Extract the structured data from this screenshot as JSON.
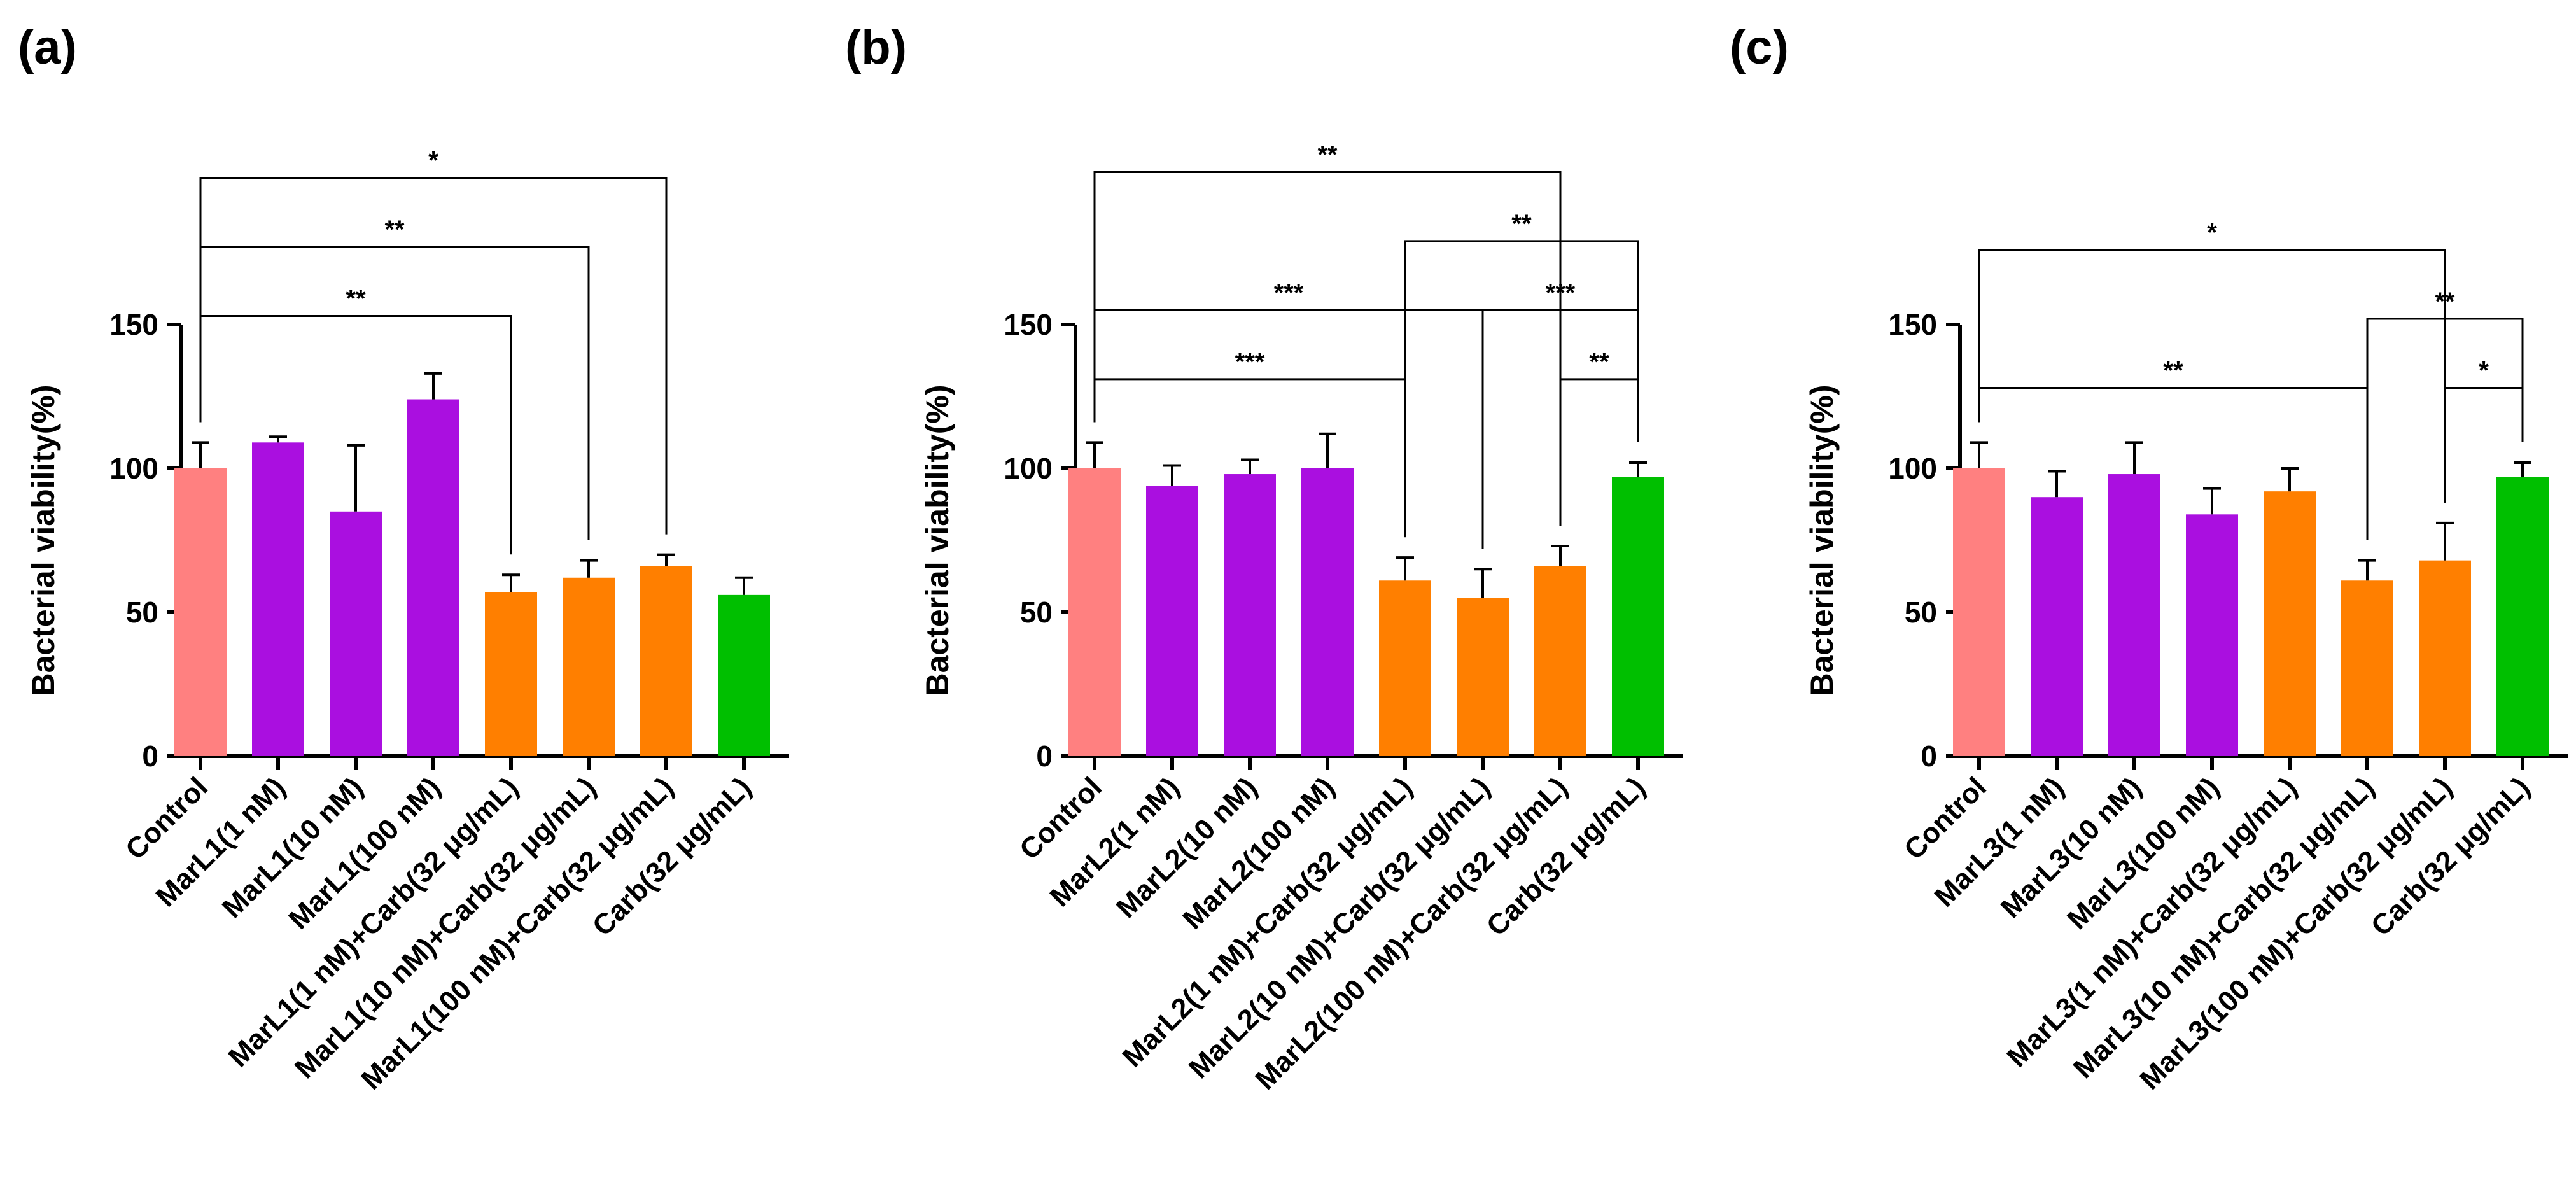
{
  "colors": {
    "control": "#FF8080",
    "marl": "#AA0FE0",
    "combo": "#FF7F00",
    "carb": "#00BF00",
    "axis": "#000000"
  },
  "chart_data": [
    {
      "type": "bar",
      "panel_label": "(a)",
      "ylabel": "Bacterial viability(%)",
      "ylim": [
        0,
        150
      ],
      "yticks": [
        0,
        50,
        100,
        150
      ],
      "grid": false,
      "categories": [
        "Control",
        "MarL1(1 nM)",
        "MarL1(10 nM)",
        "MarL1(100 nM)",
        "MarL1(1 nM)+Carb(32 μg/mL)",
        "MarL1(10 nM)+Carb(32 μg/mL)",
        "MarL1(100 nM)+Carb(32 μg/mL)",
        "Carb(32 μg/mL)"
      ],
      "values": [
        100,
        109,
        85,
        124,
        57,
        62,
        66,
        56
      ],
      "errors": [
        9,
        2,
        23,
        9,
        6,
        6,
        4,
        6
      ],
      "color_keys": [
        "control",
        "marl",
        "marl",
        "marl",
        "combo",
        "combo",
        "combo",
        "carb"
      ],
      "significance": [
        {
          "from": 0,
          "to": 4,
          "label": "**",
          "y": 153
        },
        {
          "from": 0,
          "to": 5,
          "label": "**",
          "y": 177
        },
        {
          "from": 0,
          "to": 6,
          "label": "*",
          "y": 201
        }
      ]
    },
    {
      "type": "bar",
      "panel_label": "(b)",
      "ylabel": "Bacterial viability(%)",
      "ylim": [
        0,
        150
      ],
      "yticks": [
        0,
        50,
        100,
        150
      ],
      "grid": false,
      "categories": [
        "Control",
        "MarL2(1 nM)",
        "MarL2(10 nM)",
        "MarL2(100 nM)",
        "MarL2(1 nM)+Carb(32 μg/mL)",
        "MarL2(10 nM)+Carb(32 μg/mL)",
        "MarL2(100 nM)+Carb(32 μg/mL)",
        "Carb(32 μg/mL)"
      ],
      "values": [
        100,
        94,
        98,
        100,
        61,
        55,
        66,
        97
      ],
      "errors": [
        9,
        7,
        5,
        12,
        8,
        10,
        7,
        5
      ],
      "color_keys": [
        "control",
        "marl",
        "marl",
        "marl",
        "combo",
        "combo",
        "combo",
        "carb"
      ],
      "significance": [
        {
          "from": 6,
          "to": 7,
          "label": "**",
          "y": 131
        },
        {
          "from": 0,
          "to": 4,
          "label": "***",
          "y": 131
        },
        {
          "from": 0,
          "to": 5,
          "label": "***",
          "y": 155
        },
        {
          "from": 5,
          "to": 7,
          "label": "***",
          "y": 155
        },
        {
          "from": 4,
          "to": 7,
          "label": "**",
          "y": 179
        },
        {
          "from": 0,
          "to": 6,
          "label": "**",
          "y": 203
        }
      ]
    },
    {
      "type": "bar",
      "panel_label": "(c)",
      "ylabel": "Bacterial viability(%)",
      "ylim": [
        0,
        150
      ],
      "yticks": [
        0,
        50,
        100,
        150
      ],
      "grid": false,
      "categories": [
        "Control",
        "MarL3(1 nM)",
        "MarL3(10 nM)",
        "MarL3(100 nM)",
        "MarL3(1 nM)+Carb(32 μg/mL)",
        "MarL3(10 nM)+Carb(32 μg/mL)",
        "MarL3(100 nM)+Carb(32 μg/mL)",
        "Carb(32 μg/mL)"
      ],
      "values": [
        100,
        90,
        98,
        84,
        92,
        61,
        68,
        97
      ],
      "errors": [
        9,
        9,
        11,
        9,
        8,
        7,
        13,
        5
      ],
      "color_keys": [
        "control",
        "marl",
        "marl",
        "marl",
        "combo",
        "combo",
        "combo",
        "carb"
      ],
      "significance": [
        {
          "from": 6,
          "to": 7,
          "label": "*",
          "y": 128
        },
        {
          "from": 0,
          "to": 5,
          "label": "**",
          "y": 128
        },
        {
          "from": 5,
          "to": 7,
          "label": "**",
          "y": 152
        },
        {
          "from": 0,
          "to": 6,
          "label": "*",
          "y": 176
        }
      ]
    }
  ]
}
